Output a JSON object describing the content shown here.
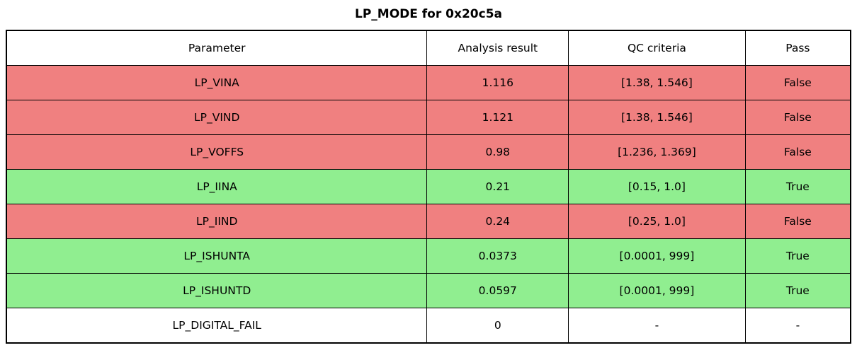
{
  "title": "LP_MODE for 0x20c5a",
  "colors": {
    "fail": "#f08080",
    "pass": "#90ee90",
    "none": "#ffffff"
  },
  "table": {
    "columns": [
      "Parameter",
      "Analysis result",
      "QC criteria",
      "Pass"
    ],
    "rows": [
      {
        "parameter": "LP_VINA",
        "result": "1.116",
        "criteria": "[1.38, 1.546]",
        "pass": "False",
        "status": "fail"
      },
      {
        "parameter": "LP_VIND",
        "result": "1.121",
        "criteria": "[1.38, 1.546]",
        "pass": "False",
        "status": "fail"
      },
      {
        "parameter": "LP_VOFFS",
        "result": "0.98",
        "criteria": "[1.236, 1.369]",
        "pass": "False",
        "status": "fail"
      },
      {
        "parameter": "LP_IINA",
        "result": "0.21",
        "criteria": "[0.15, 1.0]",
        "pass": "True",
        "status": "pass"
      },
      {
        "parameter": "LP_IIND",
        "result": "0.24",
        "criteria": "[0.25, 1.0]",
        "pass": "False",
        "status": "fail"
      },
      {
        "parameter": "LP_ISHUNTA",
        "result": "0.0373",
        "criteria": "[0.0001, 999]",
        "pass": "True",
        "status": "pass"
      },
      {
        "parameter": "LP_ISHUNTD",
        "result": "0.0597",
        "criteria": "[0.0001, 999]",
        "pass": "True",
        "status": "pass"
      },
      {
        "parameter": "LP_DIGITAL_FAIL",
        "result": "0",
        "criteria": "-",
        "pass": "-",
        "status": "none"
      }
    ]
  },
  "chart_data": {
    "type": "table",
    "title": "LP_MODE for 0x20c5a",
    "columns": [
      "Parameter",
      "Analysis result",
      "QC criteria",
      "Pass"
    ],
    "rows": [
      [
        "LP_VINA",
        1.116,
        "[1.38, 1.546]",
        "False"
      ],
      [
        "LP_VIND",
        1.121,
        "[1.38, 1.546]",
        "False"
      ],
      [
        "LP_VOFFS",
        0.98,
        "[1.236, 1.369]",
        "False"
      ],
      [
        "LP_IINA",
        0.21,
        "[0.15, 1.0]",
        "True"
      ],
      [
        "LP_IIND",
        0.24,
        "[0.25, 1.0]",
        "False"
      ],
      [
        "LP_ISHUNTA",
        0.0373,
        "[0.0001, 999]",
        "True"
      ],
      [
        "LP_ISHUNTD",
        0.0597,
        "[0.0001, 999]",
        "True"
      ],
      [
        "LP_DIGITAL_FAIL",
        0,
        "-",
        "-"
      ]
    ],
    "row_status_colors": [
      "#f08080",
      "#f08080",
      "#f08080",
      "#90ee90",
      "#f08080",
      "#90ee90",
      "#90ee90",
      "#ffffff"
    ],
    "layout": {
      "header_background": "#ffffff",
      "border_color": "#000000",
      "grid": true
    }
  }
}
